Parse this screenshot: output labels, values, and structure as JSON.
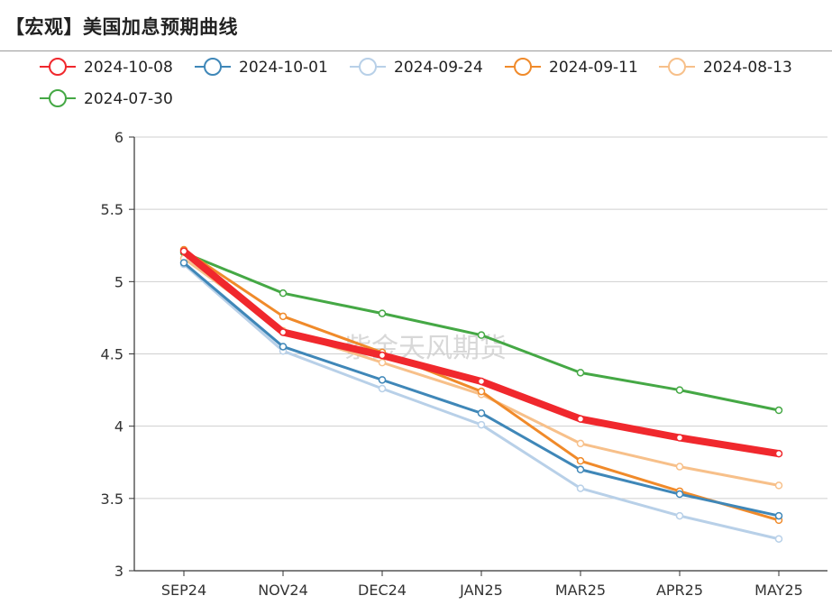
{
  "header": {
    "title": "【宏观】美国加息预期曲线"
  },
  "watermark": "紫金天风期货",
  "chart_data": {
    "type": "line",
    "categories": [
      "SEP24",
      "NOV24",
      "DEC24",
      "JAN25",
      "MAR25",
      "APR25",
      "MAY25"
    ],
    "ylim": [
      3,
      6
    ],
    "yticks": [
      "3",
      "3.5",
      "4",
      "4.5",
      "5",
      "5.5",
      "6"
    ],
    "grid": "horizontal",
    "legend_position": "top-left",
    "series": [
      {
        "name": "2024-10-08",
        "color": "#f0282d",
        "values": [
          5.21,
          4.65,
          4.49,
          4.31,
          4.05,
          3.92,
          3.81
        ]
      },
      {
        "name": "2024-10-01",
        "color": "#3f87b8",
        "values": [
          5.13,
          4.55,
          4.32,
          4.09,
          3.7,
          3.53,
          3.38
        ]
      },
      {
        "name": "2024-09-24",
        "color": "#b8d0e8",
        "values": [
          5.12,
          4.52,
          4.26,
          4.01,
          3.57,
          3.38,
          3.22
        ]
      },
      {
        "name": "2024-09-11",
        "color": "#f08a2a",
        "values": [
          5.22,
          4.76,
          4.51,
          4.24,
          3.76,
          3.55,
          3.35
        ]
      },
      {
        "name": "2024-08-13",
        "color": "#f7c08a",
        "values": [
          5.16,
          4.66,
          4.44,
          4.22,
          3.88,
          3.72,
          3.59
        ]
      },
      {
        "name": "2024-07-30",
        "color": "#45a845",
        "values": [
          5.2,
          4.92,
          4.78,
          4.63,
          4.37,
          4.25,
          4.11
        ]
      }
    ]
  }
}
